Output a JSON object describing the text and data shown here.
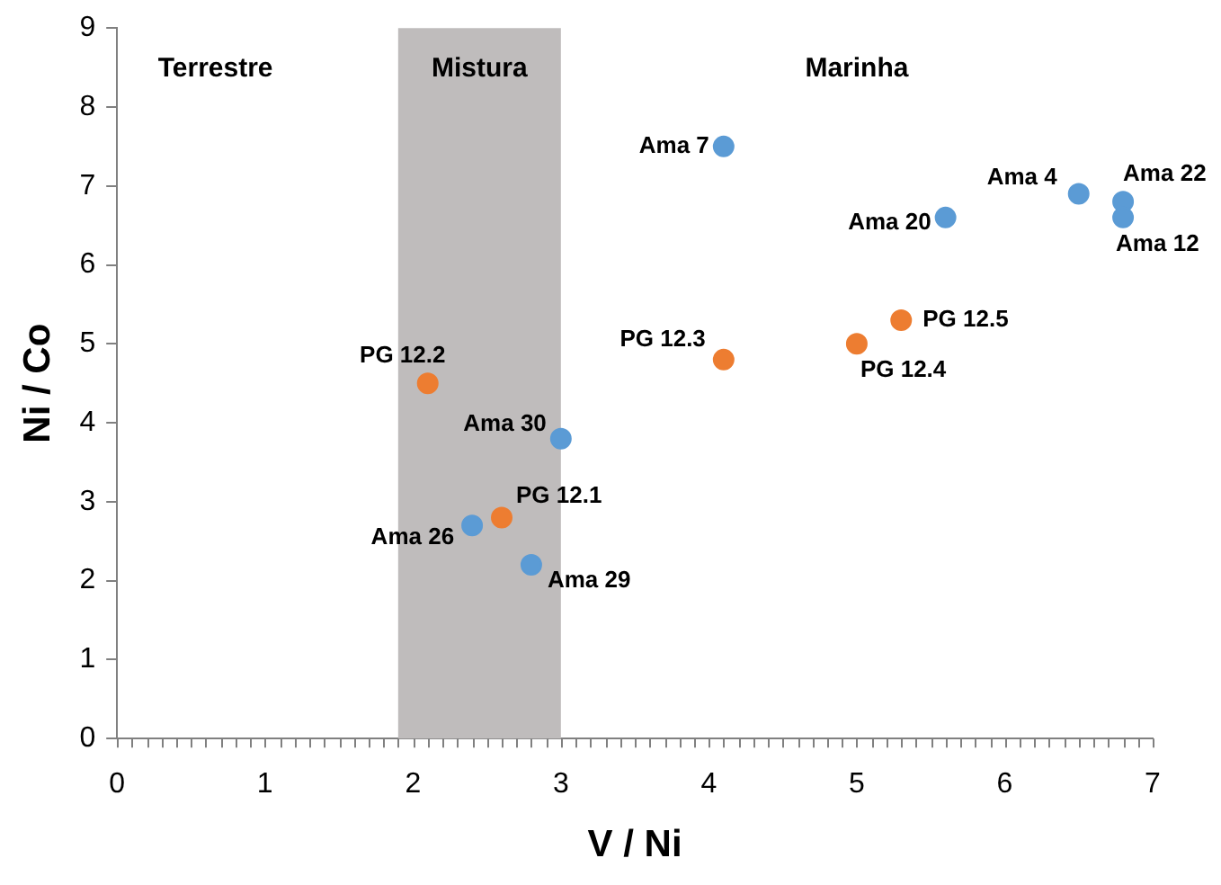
{
  "chart_data": {
    "type": "scatter",
    "xlabel": "V / Ni",
    "ylabel": "Ni / Co",
    "xlim": [
      0,
      7
    ],
    "xticks": [
      0,
      1,
      2,
      3,
      4,
      5,
      6,
      7
    ],
    "ylim": [
      0,
      9
    ],
    "yticks": [
      0,
      1,
      2,
      3,
      4,
      5,
      6,
      7,
      8,
      9
    ],
    "grid": false,
    "legend": false,
    "marker": "circle",
    "series": [
      {
        "color": "#5b9bd5",
        "x": [
          4.1,
          6.5,
          6.8,
          6.8,
          5.6,
          3.0,
          2.4,
          2.8
        ],
        "values": [
          7.5,
          6.9,
          6.8,
          6.6,
          6.6,
          3.8,
          2.7,
          2.2
        ],
        "value_labels": [
          "Ama 7",
          "Ama 4",
          "Ama 22",
          "Ama 12",
          "Ama 20",
          "Ama 30",
          "Ama 26",
          "Ama 29"
        ]
      },
      {
        "color": "#ed7d31",
        "x": [
          5.3,
          5.0,
          4.1,
          2.1,
          2.6
        ],
        "values": [
          5.3,
          5.0,
          4.8,
          4.5,
          2.8
        ],
        "value_labels": [
          "PG 12.5",
          "PG 12.4",
          "PG 12.3",
          "PG 12.2",
          "PG 12.1"
        ]
      }
    ],
    "bands": [
      {
        "axis": "x",
        "from": 1.9,
        "to": 3.0,
        "label": "Mistura",
        "color": "#bfbcbc"
      }
    ],
    "annotations": [
      "Terrestre",
      "Marinha"
    ]
  }
}
